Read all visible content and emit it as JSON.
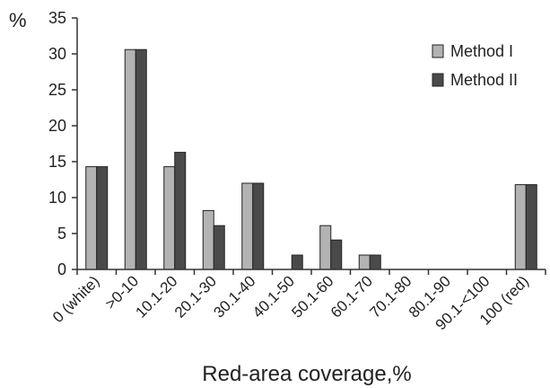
{
  "chart_data": {
    "type": "bar",
    "title": "",
    "xlabel": "Red-area coverage,%",
    "ylabel": "%",
    "ylim": [
      0,
      35
    ],
    "yticks": [
      0,
      5,
      10,
      15,
      20,
      25,
      30,
      35
    ],
    "grid": false,
    "legend_position": "top-right",
    "categories": [
      "0 (white)",
      ">0-10",
      "10.1-20",
      "20.1-30",
      "30.1-40",
      "40.1-50",
      "50.1-60",
      "60.1-70",
      "70.1-80",
      "80.1-90",
      "90.1-<100",
      "100 (red)"
    ],
    "series": [
      {
        "name": "Method I",
        "color": "#b3b3b3",
        "values": [
          14.3,
          30.6,
          14.3,
          8.2,
          12.0,
          0,
          6.1,
          2.0,
          0,
          0,
          0,
          11.8
        ]
      },
      {
        "name": "Method II",
        "color": "#4a4a4a",
        "values": [
          14.3,
          30.6,
          16.3,
          6.1,
          12.0,
          2.0,
          4.1,
          2.0,
          0,
          0,
          0,
          11.8
        ]
      }
    ]
  }
}
